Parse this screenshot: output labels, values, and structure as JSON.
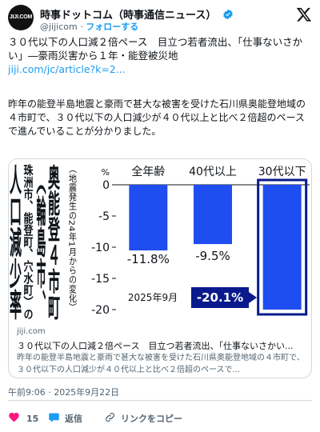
{
  "account": {
    "display_name": "時事ドットコム（時事通信ニュース）",
    "handle": "@jijicom",
    "separator": "·",
    "follow_label": "フォローする",
    "avatar_text": "JIJI.COM"
  },
  "tweet": {
    "headline": "３０代以下の人口減２倍ペース　目立つ若者流出、「仕事ないさかい」―豪雨災害から１年・能登被災地",
    "link": "jiji.com/jc/article?k=2...",
    "body": "昨年の能登半島地震と豪雨で甚大な被害を受けた石川県奥能登地域の４市町で、３０代以下の人口減少が４０代以上と比べ２倍超のペースで進んでいることが分かりました。"
  },
  "card": {
    "domain": "jiji.com",
    "title": "３０代以下の人口減２倍ペース　目立つ若者流出、「仕事ないさかい...",
    "description": "昨年の能登半島地震と豪雨で甚大な被害を受けた石川県奥能登地域の４市町で、３０代以下の人口減少が４０代以上と比べ２倍超のペースで...",
    "image": {
      "title_lines": [
        "奥能登４市町",
        "（輪島市、",
        "珠洲市、能登町、穴水町）の",
        "人口減少率"
      ],
      "subtitle": "（地震発生の24年1月からの変化）",
      "date_label": "2025年9月"
    }
  },
  "chart_data": {
    "type": "bar",
    "categories": [
      "全年齢",
      "40代以上",
      "30代以下"
    ],
    "values": [
      -11.8,
      -9.5,
      -20.1
    ],
    "value_labels": [
      "-11.8%",
      "-9.5%",
      "-20.1%"
    ],
    "ylim": [
      -20,
      0
    ],
    "yticks": [
      "0",
      "-5",
      "-10",
      "-15",
      "-20"
    ],
    "y_unit": "%",
    "colors": {
      "bar": "#1f4ef0",
      "highlight_border": "#0a1a8c",
      "callout_bg": "#0a1a8c"
    }
  },
  "meta": {
    "timestamp": "午前9:06 · 2025年9月22日"
  },
  "actions": {
    "like_count": "15",
    "reply_label": "返信",
    "share_label": "リンクをコピー",
    "icons": [
      "heart-icon",
      "reply-icon",
      "link-icon"
    ]
  }
}
